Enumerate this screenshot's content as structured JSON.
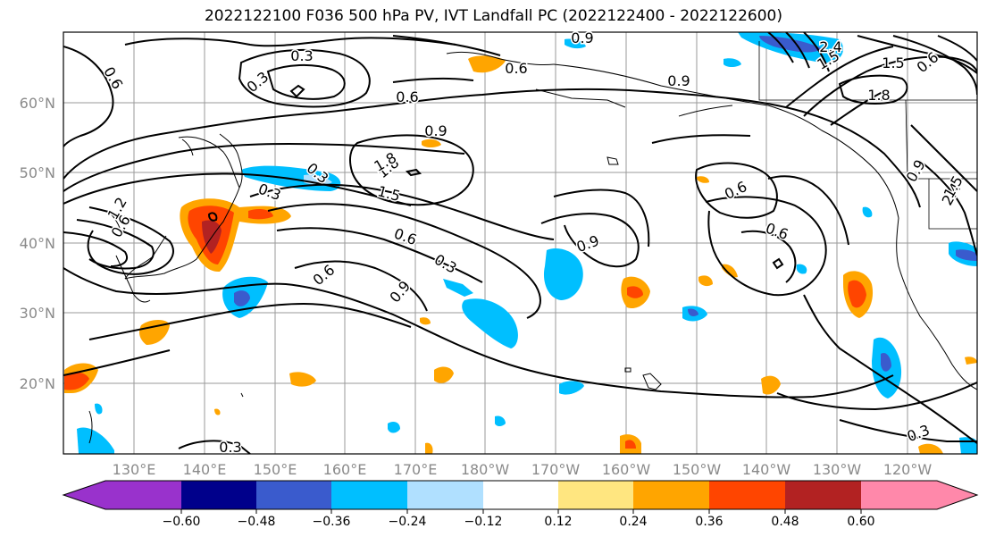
{
  "title": "2022122100 F036 500 hPa PV, IVT Landfall PC (2022122400 - 2022122600)",
  "lat_labels": [
    "60°N",
    "50°N",
    "40°N",
    "30°N",
    "20°N"
  ],
  "lon_labels": [
    "130°E",
    "140°E",
    "150°E",
    "160°E",
    "170°E",
    "180°W",
    "170°W",
    "160°W",
    "150°W",
    "140°W",
    "130°W",
    "120°W"
  ],
  "colorbar": {
    "ticks": [
      "−0.60",
      "−0.48",
      "−0.36",
      "−0.24",
      "−0.12",
      "0.12",
      "0.24",
      "0.36",
      "0.48",
      "0.60"
    ],
    "colors": [
      "#9932cc",
      "#00008b",
      "#3a5bcd",
      "#00bfff",
      "#b0e0ff",
      "#ffffff",
      "#ffe680",
      "#ffa500",
      "#ff4500",
      "#b22222",
      "#ff88aa"
    ]
  },
  "contour_labels": [
    "0.3",
    "0.6",
    "0.9",
    "1.5",
    "1.8",
    "2.4",
    "1.2",
    "0.3",
    "0.6",
    "0.9",
    "1.5",
    "0.6",
    "0.9",
    "0.3",
    "0.6",
    "0.9",
    "0.6",
    "0.6",
    "0.3",
    "0.6",
    "0.9",
    "0.6",
    "0.9",
    "0.3",
    "1.5",
    "1.8",
    "0.3",
    "0.6",
    "0.3",
    "1.8",
    "2.4",
    "1.5"
  ]
}
